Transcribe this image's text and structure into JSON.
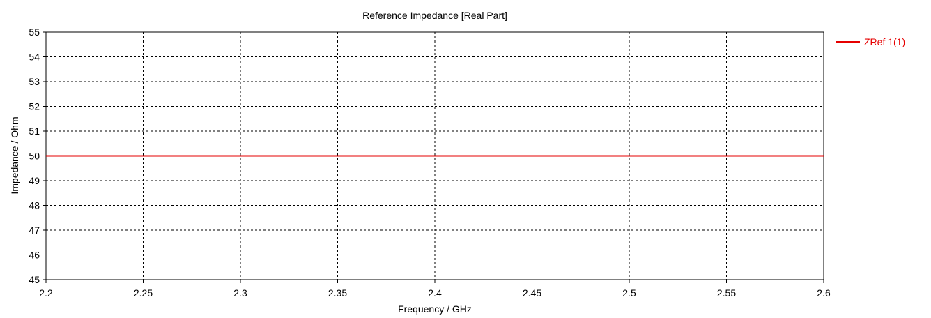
{
  "chart_data": {
    "type": "line",
    "title": "Reference Impedance [Real Part]",
    "xlabel": "Frequency / GHz",
    "ylabel": "Impedance / Ohm",
    "xlim": [
      2.2,
      2.6
    ],
    "ylim": [
      45,
      55
    ],
    "x_ticks": [
      "2.2",
      "2.25",
      "2.3",
      "2.35",
      "2.4",
      "2.45",
      "2.5",
      "2.55",
      "2.6"
    ],
    "y_ticks": [
      "45",
      "46",
      "47",
      "48",
      "49",
      "50",
      "51",
      "52",
      "53",
      "54",
      "55"
    ],
    "grid": true,
    "legend_position": "right",
    "series": [
      {
        "name": "ZRef 1(1)",
        "color": "#e60000",
        "x": [
          2.2,
          2.6
        ],
        "y": [
          50,
          50
        ]
      }
    ]
  }
}
